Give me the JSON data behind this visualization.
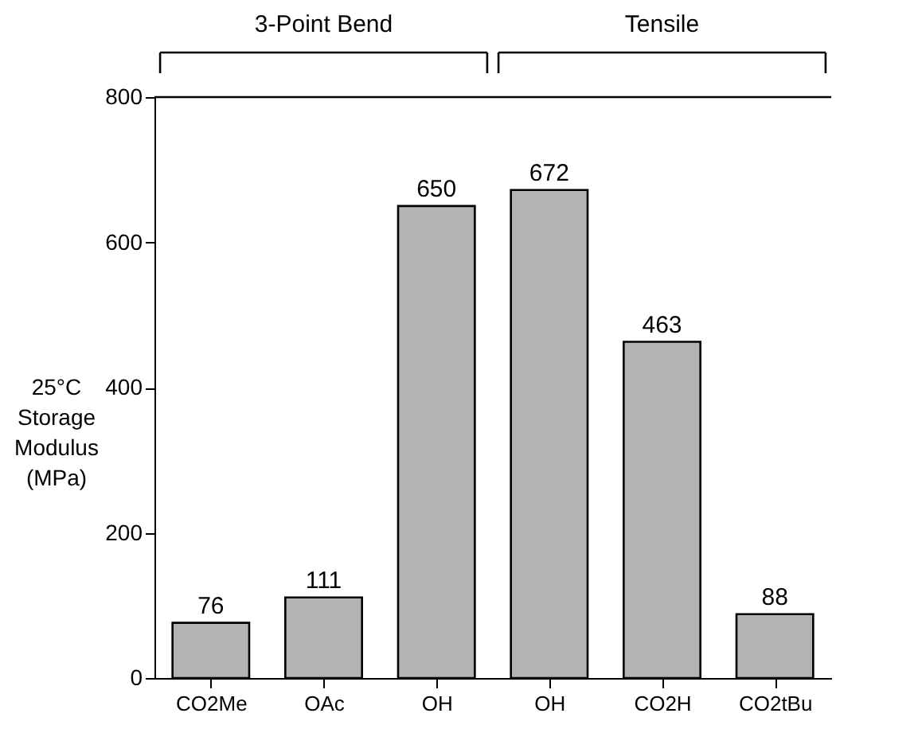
{
  "chart_data": {
    "type": "bar",
    "categories": [
      "CO2Me",
      "OAc",
      "OH",
      "OH",
      "CO2H",
      "CO2tBu"
    ],
    "values": [
      76,
      111,
      650,
      672,
      463,
      88
    ],
    "color": "#b3b3b3",
    "ylabel": "25°C Storage Modulus (MPa)",
    "ylim": [
      0,
      800
    ],
    "yticks": [
      0,
      200,
      400,
      600,
      800
    ],
    "data_labels": true,
    "grid": false,
    "annotations": [
      "3-Point Bend",
      "Tensile"
    ]
  }
}
